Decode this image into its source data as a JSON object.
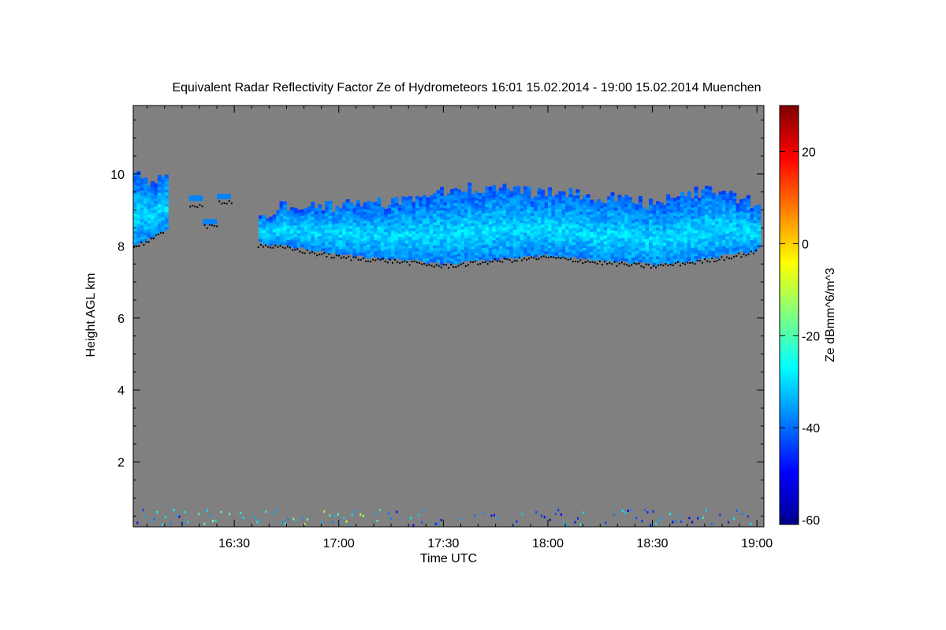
{
  "chart_data": {
    "type": "heatmap",
    "title": "Equivalent Radar Reflectivity Factor Ze of Hydrometeors    16:01 15.02.2014 - 19:00 15.02.2014 Muenchen",
    "xlabel": "Time UTC",
    "ylabel": "Height AGL km",
    "colorbar_label": "Ze dBmm^6/m^3",
    "xlim": [
      "16:01",
      "19:02"
    ],
    "ylim": [
      0.2,
      11.9
    ],
    "x_ticks": [
      "16:30",
      "17:00",
      "17:30",
      "18:00",
      "18:30",
      "19:00"
    ],
    "x_tick_minutes": [
      30,
      60,
      90,
      120,
      150,
      180
    ],
    "y_ticks": [
      2,
      4,
      6,
      8,
      10
    ],
    "colorbar_range": [
      -61,
      30
    ],
    "colorbar_ticks": [
      -60,
      -40,
      -20,
      0,
      20
    ],
    "background_color": "#808080",
    "colorscale": [
      "#00008f",
      "#0000ff",
      "#0080ff",
      "#00ffff",
      "#80ff80",
      "#ffff00",
      "#ff8000",
      "#ff0000",
      "#800000"
    ],
    "cloud_layer": {
      "description_minutes_from_1600": [
        1,
        5,
        10,
        12,
        36,
        45,
        60,
        75,
        90,
        105,
        120,
        135,
        150,
        165,
        180
      ],
      "cloud_base_km": [
        8.05,
        8.2,
        8.45,
        null,
        8.1,
        8.0,
        7.75,
        7.65,
        7.5,
        7.65,
        7.75,
        7.6,
        7.5,
        7.65,
        7.9
      ],
      "cloud_top_km": [
        9.9,
        9.8,
        9.8,
        null,
        8.7,
        9.1,
        9.1,
        9.2,
        9.5,
        9.55,
        9.45,
        9.3,
        9.1,
        9.5,
        9.1
      ],
      "typical_ze_dbz": -32
    },
    "lidar_points_desc": "black dots marking cloud base",
    "surface_clutter_km": [
      0.2,
      0.8
    ]
  }
}
